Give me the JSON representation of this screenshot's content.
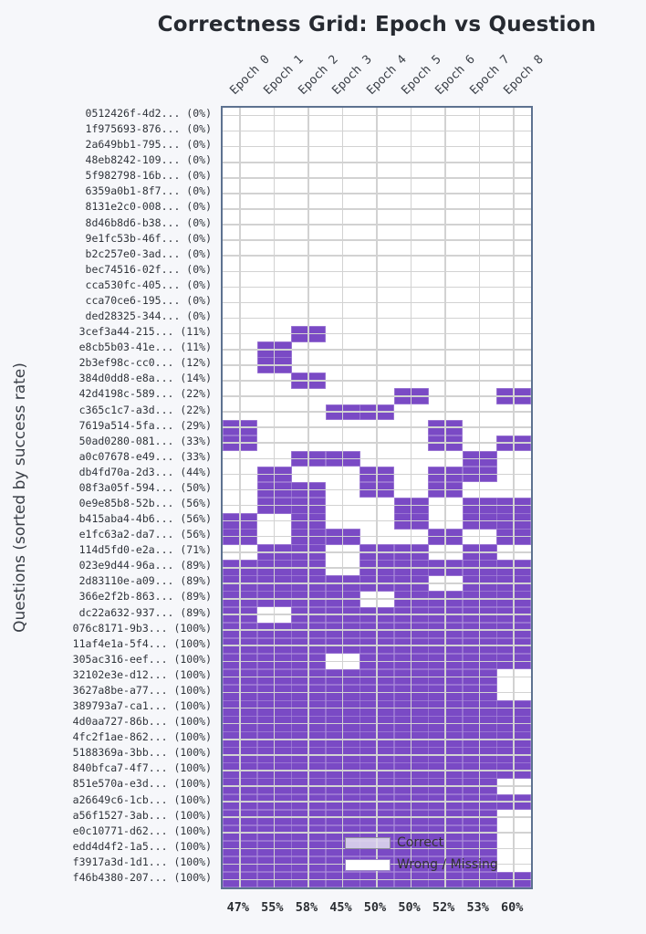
{
  "chart_data": {
    "type": "heatmap",
    "title": "Correctness Grid: Epoch vs Question",
    "ylabel": "Questions (sorted by success rate)",
    "columns": [
      "Epoch 0",
      "Epoch 1",
      "Epoch 2",
      "Epoch 3",
      "Epoch 4",
      "Epoch 5",
      "Epoch 6",
      "Epoch 7",
      "Epoch 8"
    ],
    "column_success": [
      "47%",
      "55%",
      "58%",
      "45%",
      "50%",
      "50%",
      "52%",
      "53%",
      "60%"
    ],
    "legend": [
      {
        "label": "Correct",
        "swatch": "filled"
      },
      {
        "label": "Wrong / Missing",
        "swatch": "empty"
      }
    ],
    "colors": {
      "correct": "#7a4ac5",
      "wrong": "#ffffff",
      "gridline": "#d2d2d2",
      "border": "#5d7290",
      "background": "#f6f7fa"
    },
    "rows": [
      {
        "label": "0512426f-4d2... (0%)",
        "cells": "000000000"
      },
      {
        "label": "1f975693-876... (0%)",
        "cells": "000000000"
      },
      {
        "label": "2a649bb1-795... (0%)",
        "cells": "000000000"
      },
      {
        "label": "48eb8242-109... (0%)",
        "cells": "000000000"
      },
      {
        "label": "5f982798-16b... (0%)",
        "cells": "000000000"
      },
      {
        "label": "6359a0b1-8f7... (0%)",
        "cells": "000000000"
      },
      {
        "label": "8131e2c0-008... (0%)",
        "cells": "000000000"
      },
      {
        "label": "8d46b8d6-b38... (0%)",
        "cells": "000000000"
      },
      {
        "label": "9e1fc53b-46f... (0%)",
        "cells": "000000000"
      },
      {
        "label": "b2c257e0-3ad... (0%)",
        "cells": "000000000"
      },
      {
        "label": "bec74516-02f... (0%)",
        "cells": "000000000"
      },
      {
        "label": "cca530fc-405... (0%)",
        "cells": "000000000"
      },
      {
        "label": "cca70ce6-195... (0%)",
        "cells": "000000000"
      },
      {
        "label": "ded28325-344... (0%)",
        "cells": "000000000"
      },
      {
        "label": "3cef3a44-215... (11%)",
        "cells": "001000000"
      },
      {
        "label": "e8cb5b03-41e... (11%)",
        "cells": "010000000"
      },
      {
        "label": "2b3ef98c-cc0... (12%)",
        "cells": "010000000"
      },
      {
        "label": "384d0dd8-e8a... (14%)",
        "cells": "001000000"
      },
      {
        "label": "42d4198c-589... (22%)",
        "cells": "000001001"
      },
      {
        "label": "c365c1c7-a3d... (22%)",
        "cells": "000110000"
      },
      {
        "label": "7619a514-5fa... (29%)",
        "cells": "100000100"
      },
      {
        "label": "50ad0280-081... (33%)",
        "cells": "100000101"
      },
      {
        "label": "a0c07678-e49... (33%)",
        "cells": "001100010"
      },
      {
        "label": "db4fd70a-2d3... (44%)",
        "cells": "010010110"
      },
      {
        "label": "08f3a05f-594... (50%)",
        "cells": "011010100"
      },
      {
        "label": "0e9e85b8-52b... (56%)",
        "cells": "011001011"
      },
      {
        "label": "b415aba4-4b6... (56%)",
        "cells": "101001011"
      },
      {
        "label": "e1fc63a2-da7... (56%)",
        "cells": "101100101"
      },
      {
        "label": "114d5fd0-e2a... (71%)",
        "cells": "011011010"
      },
      {
        "label": "023e9d44-96a... (89%)",
        "cells": "111011111"
      },
      {
        "label": "2d83110e-a09... (89%)",
        "cells": "111111011"
      },
      {
        "label": "366e2f2b-863... (89%)",
        "cells": "111101111"
      },
      {
        "label": "dc22a632-937... (89%)",
        "cells": "101111111"
      },
      {
        "label": "076c8171-9b3... (100%)",
        "cells": "111111111"
      },
      {
        "label": "11af4e1a-5f4... (100%)",
        "cells": "111111111"
      },
      {
        "label": "305ac316-eef... (100%)",
        "cells": "111011111"
      },
      {
        "label": "32102e3e-d12... (100%)",
        "cells": "111111110"
      },
      {
        "label": "3627a8be-a77... (100%)",
        "cells": "111111110"
      },
      {
        "label": "389793a7-ca1... (100%)",
        "cells": "111111111"
      },
      {
        "label": "4d0aa727-86b... (100%)",
        "cells": "111111111"
      },
      {
        "label": "4fc2f1ae-862... (100%)",
        "cells": "111111111"
      },
      {
        "label": "5188369a-3bb... (100%)",
        "cells": "111111111"
      },
      {
        "label": "840bfca7-4f7... (100%)",
        "cells": "111111111"
      },
      {
        "label": "851e570a-e3d... (100%)",
        "cells": "111111110"
      },
      {
        "label": "a26649c6-1cb... (100%)",
        "cells": "111111111"
      },
      {
        "label": "a56f1527-3ab... (100%)",
        "cells": "111111110"
      },
      {
        "label": "e0c10771-d62... (100%)",
        "cells": "111111110"
      },
      {
        "label": "edd4d4f2-1a5... (100%)",
        "cells": "111111110"
      },
      {
        "label": "f3917a3d-1d1... (100%)",
        "cells": "111111110"
      },
      {
        "label": "f46b4380-207... (100%)",
        "cells": "111111111"
      }
    ]
  }
}
